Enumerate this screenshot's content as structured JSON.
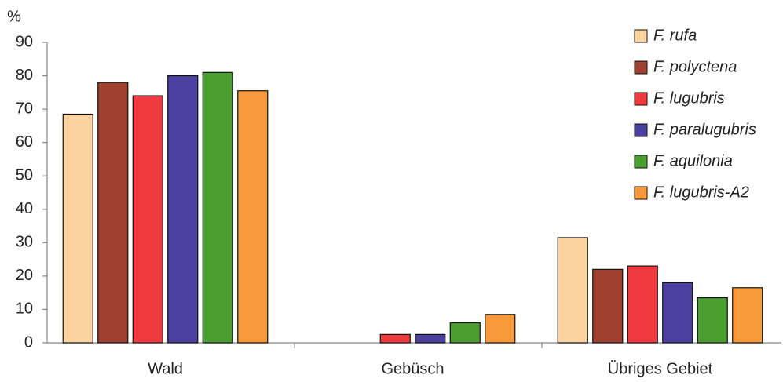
{
  "chart_data": {
    "type": "bar",
    "ylabel": "%",
    "categories": [
      "Wald",
      "Gebüsch",
      "Übriges Gebiet"
    ],
    "series": [
      {
        "name": "F. rufa",
        "color": "#fcd29e",
        "values": [
          68.5,
          0,
          31.5
        ]
      },
      {
        "name": "F. polyctena",
        "color": "#a0402e",
        "values": [
          78,
          0,
          22
        ]
      },
      {
        "name": "F. lugubris",
        "color": "#f03a40",
        "values": [
          74,
          2.5,
          23
        ]
      },
      {
        "name": "F. paralugubris",
        "color": "#4b40a0",
        "values": [
          80,
          2.5,
          18
        ]
      },
      {
        "name": "F. aquilonia",
        "color": "#4a9f30",
        "values": [
          81,
          6,
          13.5
        ]
      },
      {
        "name": "F. lugubris-A2",
        "color": "#f99a3a",
        "values": [
          75.5,
          8.5,
          16.5
        ]
      }
    ],
    "ylim": [
      0,
      90
    ],
    "yticks": [
      0,
      10,
      20,
      30,
      40,
      50,
      60,
      70,
      80,
      90
    ],
    "grid": false,
    "legend": "upper right"
  }
}
